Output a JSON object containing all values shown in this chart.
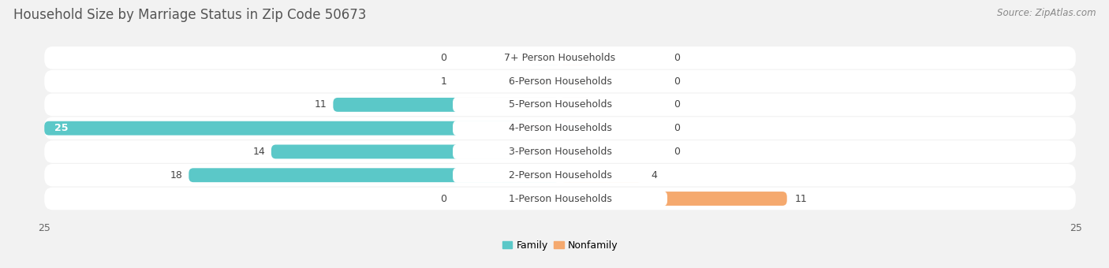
{
  "title": "Household Size by Marriage Status in Zip Code 50673",
  "source": "Source: ZipAtlas.com",
  "categories": [
    "7+ Person Households",
    "6-Person Households",
    "5-Person Households",
    "4-Person Households",
    "3-Person Households",
    "2-Person Households",
    "1-Person Households"
  ],
  "family": [
    0,
    1,
    11,
    25,
    14,
    18,
    0
  ],
  "nonfamily": [
    0,
    0,
    0,
    0,
    0,
    4,
    11
  ],
  "family_color": "#5BC8C8",
  "nonfamily_color": "#F5A96E",
  "xlim": 25,
  "bg_color": "#f2f2f2",
  "row_bg_color": "#ffffff",
  "title_fontsize": 12,
  "label_fontsize": 9,
  "tick_fontsize": 9,
  "source_fontsize": 8.5,
  "legend_fontsize": 9
}
